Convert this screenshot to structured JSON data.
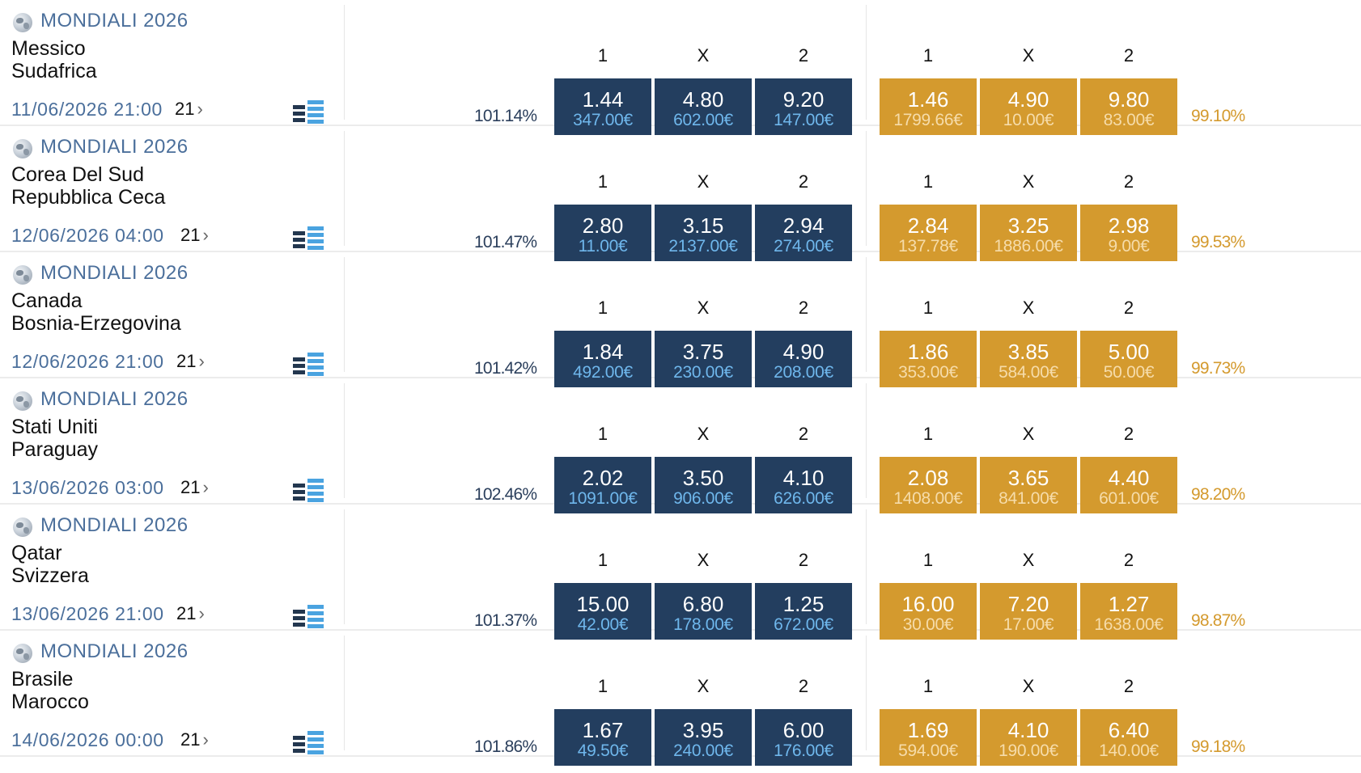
{
  "colors": {
    "back_box": "#233e5f",
    "back_stake": "#6fb7ec",
    "lay_box": "#d49a2e",
    "lay_stake": "#f6dcaa",
    "link_blue": "#4b6f9b"
  },
  "icons": {
    "competition": "globe-icon",
    "markets_view": "list-view-icon",
    "chevron": "chevron-right-icon"
  },
  "matches": [
    {
      "competition": "MONDIALI 2026",
      "home": "Messico",
      "away": "Sudafrica",
      "datetime": "11/06/2026 21:00",
      "markets": "21",
      "back_percent": "101.14%",
      "lay_percent": "99.10%",
      "back": [
        {
          "label": "1",
          "price": "1.44",
          "stake": "347.00€"
        },
        {
          "label": "X",
          "price": "4.80",
          "stake": "602.00€"
        },
        {
          "label": "2",
          "price": "9.20",
          "stake": "147.00€"
        }
      ],
      "lay": [
        {
          "label": "1",
          "price": "1.46",
          "stake": "1799.66€"
        },
        {
          "label": "X",
          "price": "4.90",
          "stake": "10.00€"
        },
        {
          "label": "2",
          "price": "9.80",
          "stake": "83.00€"
        }
      ]
    },
    {
      "competition": "MONDIALI 2026",
      "home": "Corea Del Sud",
      "away": "Repubblica Ceca",
      "datetime": "12/06/2026 04:00",
      "markets": "21",
      "back_percent": "101.47%",
      "lay_percent": "99.53%",
      "back": [
        {
          "label": "1",
          "price": "2.80",
          "stake": "11.00€"
        },
        {
          "label": "X",
          "price": "3.15",
          "stake": "2137.00€"
        },
        {
          "label": "2",
          "price": "2.94",
          "stake": "274.00€"
        }
      ],
      "lay": [
        {
          "label": "1",
          "price": "2.84",
          "stake": "137.78€"
        },
        {
          "label": "X",
          "price": "3.25",
          "stake": "1886.00€"
        },
        {
          "label": "2",
          "price": "2.98",
          "stake": "9.00€"
        }
      ]
    },
    {
      "competition": "MONDIALI 2026",
      "home": "Canada",
      "away": "Bosnia-Erzegovina",
      "datetime": "12/06/2026 21:00",
      "markets": "21",
      "back_percent": "101.42%",
      "lay_percent": "99.73%",
      "back": [
        {
          "label": "1",
          "price": "1.84",
          "stake": "492.00€"
        },
        {
          "label": "X",
          "price": "3.75",
          "stake": "230.00€"
        },
        {
          "label": "2",
          "price": "4.90",
          "stake": "208.00€"
        }
      ],
      "lay": [
        {
          "label": "1",
          "price": "1.86",
          "stake": "353.00€"
        },
        {
          "label": "X",
          "price": "3.85",
          "stake": "584.00€"
        },
        {
          "label": "2",
          "price": "5.00",
          "stake": "50.00€"
        }
      ]
    },
    {
      "competition": "MONDIALI 2026",
      "home": "Stati Uniti",
      "away": "Paraguay",
      "datetime": "13/06/2026 03:00",
      "markets": "21",
      "back_percent": "102.46%",
      "lay_percent": "98.20%",
      "back": [
        {
          "label": "1",
          "price": "2.02",
          "stake": "1091.00€"
        },
        {
          "label": "X",
          "price": "3.50",
          "stake": "906.00€"
        },
        {
          "label": "2",
          "price": "4.10",
          "stake": "626.00€"
        }
      ],
      "lay": [
        {
          "label": "1",
          "price": "2.08",
          "stake": "1408.00€"
        },
        {
          "label": "X",
          "price": "3.65",
          "stake": "841.00€"
        },
        {
          "label": "2",
          "price": "4.40",
          "stake": "601.00€"
        }
      ]
    },
    {
      "competition": "MONDIALI 2026",
      "home": "Qatar",
      "away": "Svizzera",
      "datetime": "13/06/2026 21:00",
      "markets": "21",
      "back_percent": "101.37%",
      "lay_percent": "98.87%",
      "back": [
        {
          "label": "1",
          "price": "15.00",
          "stake": "42.00€"
        },
        {
          "label": "X",
          "price": "6.80",
          "stake": "178.00€"
        },
        {
          "label": "2",
          "price": "1.25",
          "stake": "672.00€"
        }
      ],
      "lay": [
        {
          "label": "1",
          "price": "16.00",
          "stake": "30.00€"
        },
        {
          "label": "X",
          "price": "7.20",
          "stake": "17.00€"
        },
        {
          "label": "2",
          "price": "1.27",
          "stake": "1638.00€"
        }
      ]
    },
    {
      "competition": "MONDIALI 2026",
      "home": "Brasile",
      "away": "Marocco",
      "datetime": "14/06/2026 00:00",
      "markets": "21",
      "back_percent": "101.86%",
      "lay_percent": "99.18%",
      "back": [
        {
          "label": "1",
          "price": "1.67",
          "stake": "49.50€"
        },
        {
          "label": "X",
          "price": "3.95",
          "stake": "240.00€"
        },
        {
          "label": "2",
          "price": "6.00",
          "stake": "176.00€"
        }
      ],
      "lay": [
        {
          "label": "1",
          "price": "1.69",
          "stake": "594.00€"
        },
        {
          "label": "X",
          "price": "4.10",
          "stake": "190.00€"
        },
        {
          "label": "2",
          "price": "6.40",
          "stake": "140.00€"
        }
      ]
    }
  ]
}
